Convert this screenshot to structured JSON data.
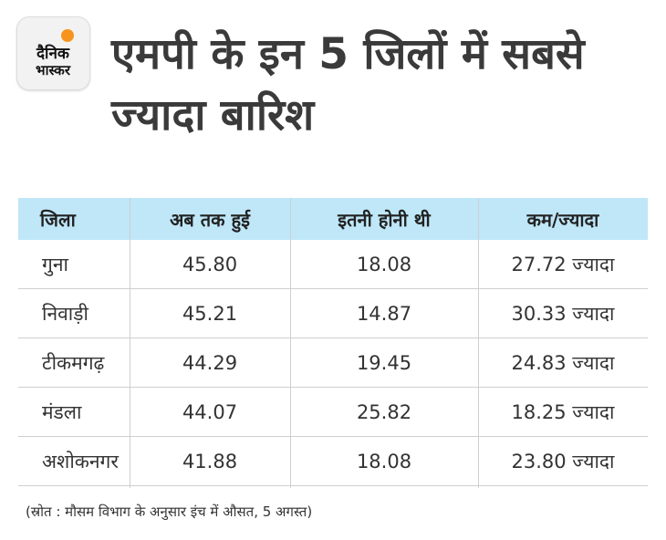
{
  "logo": {
    "line1": "दैनिक",
    "line2": "भास्कर",
    "sun_color": "#f7941d"
  },
  "title": "एमपी के इन 5 जिलों में सबसे ज्यादा बारिश",
  "chart_data": {
    "type": "table",
    "columns": [
      "जिला",
      "अब तक हुई",
      "इतनी होनी थी",
      "कम/ज्यादा"
    ],
    "rows": [
      [
        "गुना",
        "45.80",
        "18.08",
        "27.72 ज्यादा"
      ],
      [
        "निवाड़ी",
        "45.21",
        "14.87",
        "30.33 ज्यादा"
      ],
      [
        "टीकमगढ़",
        "44.29",
        "19.45",
        "24.83 ज्यादा"
      ],
      [
        "मंडला",
        "44.07",
        "25.82",
        "18.25 ज्यादा"
      ],
      [
        "अशोकनगर",
        "41.88",
        "18.08",
        "23.80 ज्यादा"
      ]
    ]
  },
  "source": "(स्रोत : मौसम विभाग के अनुसार इंच में औसत, 5 अगस्त)",
  "colors": {
    "header_bg": "#bfe7f8",
    "title_text": "#3a3a3a"
  }
}
